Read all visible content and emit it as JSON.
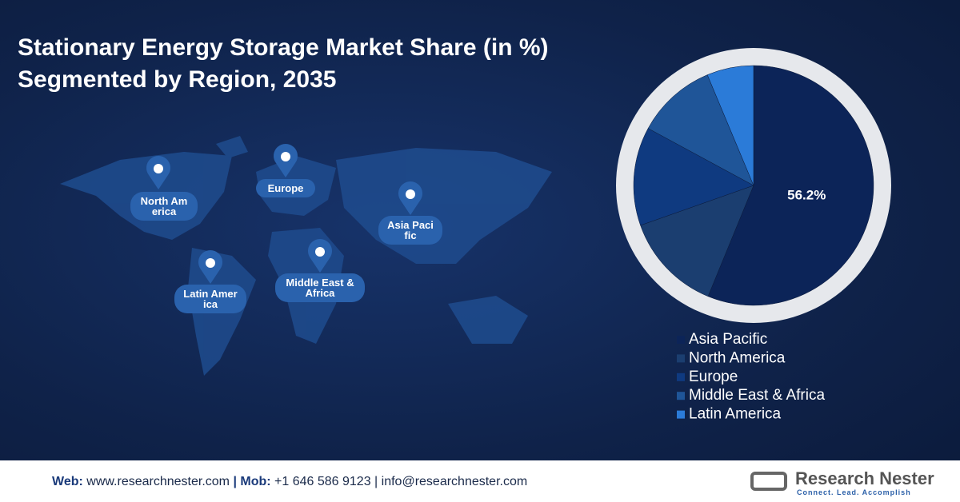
{
  "chart_data": {
    "type": "pie",
    "title": "Stationary Energy Storage Market Share (in %) Segmented by Region, 2035",
    "categories": [
      "Asia Pacific",
      "North America",
      "Europe",
      "Middle East & Africa",
      "Latin America"
    ],
    "values": [
      56.2,
      13.4,
      13.3,
      10.8,
      6.3
    ],
    "value_labels": [
      "56.2%",
      null,
      null,
      null,
      null
    ],
    "colors": [
      "#0c2458",
      "#1b3e70",
      "#0f3a80",
      "#1f5598",
      "#2b7bd8"
    ]
  },
  "map_labels": [
    "North America",
    "Europe",
    "Asia Pacific",
    "Latin America",
    "Middle East & Africa"
  ],
  "footer": {
    "web_label": "Web:",
    "web": "www.researchnester.com",
    "mob_label": "| Mob:",
    "mob": "+1 646 586 9123",
    "email": "| info@researchnester.com"
  },
  "logo": {
    "name": "Research Nester",
    "tagline": "Connect. Lead. Accomplish"
  }
}
